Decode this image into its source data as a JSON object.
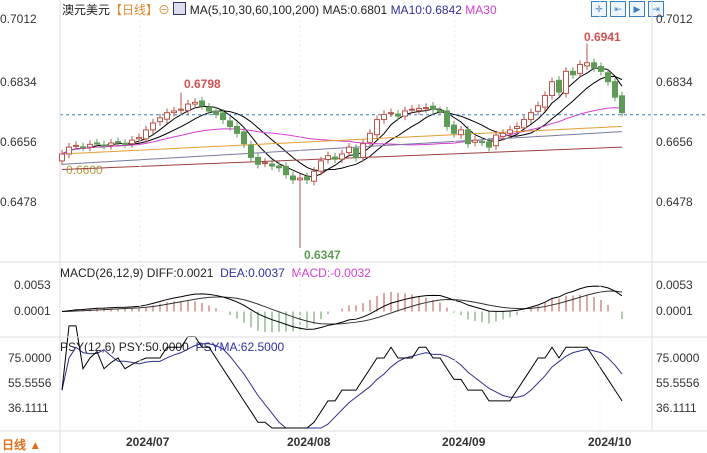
{
  "header": {
    "symbol": "澳元美元",
    "period": "【日线】",
    "zoom_icon": "⊖",
    "ma_label": "MA(5,10,30,60,100,200)",
    "ma5": "MA5:0.6801",
    "ma10": "MA10:0.6842",
    "ma30": "MA30"
  },
  "toolbar": [
    "crosshair-icon",
    "zoom-range-icon",
    "step-forward-icon",
    "jump-end-icon"
  ],
  "price_axis": [
    "0.7012",
    "0.6834",
    "0.6656",
    "0.6478"
  ],
  "annotations": {
    "high1": "0.6798",
    "high2": "0.6941",
    "low": "0.6347",
    "ma_level": "0.6600"
  },
  "macd": {
    "label": "MACD(26,12,9)",
    "diff": "DIFF:0.0021",
    "dea": "DEA:0.0037",
    "macd": "MACD:-0.0032",
    "axis": [
      "0.0053",
      "0.0001"
    ]
  },
  "psy": {
    "label": "PSY(12,6)",
    "psy": "PSY:50.0000",
    "psyma": "PSYMA:62.5000",
    "axis": [
      "75.0000",
      "55.5556",
      "36.1111"
    ]
  },
  "dates": [
    "2024/07",
    "2024/08",
    "2024/09",
    "2024/10"
  ],
  "period_button": "日线 ▲",
  "colors": {
    "up": "#b8544a",
    "down": "#5e9b57",
    "ma5": "#000000",
    "ma10": "#000000",
    "ma30": "#d23fd2",
    "ma60": "#e0a030",
    "ma100": "#7a7aa0",
    "ma200": "#a04040",
    "accent": "#e07020"
  },
  "chart_data": {
    "type": "candlestick",
    "closes": [
      0.662,
      0.664,
      0.6645,
      0.664,
      0.6648,
      0.665,
      0.6645,
      0.6652,
      0.6655,
      0.665,
      0.666,
      0.6668,
      0.669,
      0.671,
      0.6725,
      0.674,
      0.6745,
      0.675,
      0.6765,
      0.677,
      0.676,
      0.6745,
      0.6735,
      0.672,
      0.67,
      0.668,
      0.665,
      0.661,
      0.659,
      0.6595,
      0.6585,
      0.658,
      0.656,
      0.6545,
      0.655,
      0.6545,
      0.657,
      0.66,
      0.6615,
      0.6605,
      0.662,
      0.664,
      0.661,
      0.665,
      0.668,
      0.672,
      0.6735,
      0.674,
      0.673,
      0.6745,
      0.675,
      0.6752,
      0.6755,
      0.675,
      0.6745,
      0.67,
      0.668,
      0.669,
      0.665,
      0.666,
      0.6655,
      0.664,
      0.6675,
      0.668,
      0.669,
      0.67,
      0.672,
      0.674,
      0.676,
      0.679,
      0.683,
      0.68,
      0.686,
      0.685,
      0.688,
      0.6885,
      0.687,
      0.686,
      0.683,
      0.6785,
      0.674
    ],
    "ylim": [
      0.63,
      0.703
    ],
    "ma60": [
      0.662,
      0.67
    ],
    "ma100": [
      0.659,
      0.6685
    ],
    "ma200": [
      0.6575,
      0.664
    ],
    "last_price": 0.6734
  }
}
